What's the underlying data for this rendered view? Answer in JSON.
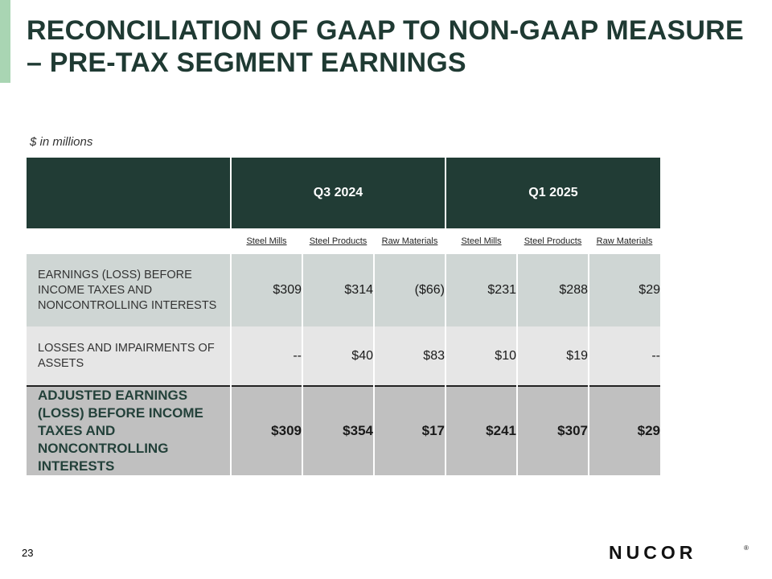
{
  "title": "RECONCILIATION OF GAAP TO NON-GAAP MEASURE – PRE-TAX SEGMENT EARNINGS",
  "subtitle": "$ in millions",
  "periods": [
    "Q3 2024",
    "Q1 2025"
  ],
  "segments": [
    "Steel Mills",
    "Steel Products",
    "Raw Materials",
    "Steel Mills",
    "Steel Products",
    "Raw Materials"
  ],
  "rows": [
    {
      "label": "EARNINGS (LOSS) BEFORE INCOME TAXES AND NONCONTROLLING INTERESTS",
      "values": [
        "$309",
        "$314",
        "($66)",
        "$231",
        "$288",
        "$29"
      ]
    },
    {
      "label": "LOSSES AND IMPAIRMENTS OF ASSETS",
      "values": [
        "--",
        "$40",
        "$83",
        "$10",
        "$19",
        "--"
      ]
    },
    {
      "label": "ADJUSTED EARNINGS (LOSS) BEFORE INCOME TAXES AND NONCONTROLLING INTERESTS",
      "values": [
        "$309",
        "$354",
        "$17",
        "$241",
        "$307",
        "$29"
      ]
    }
  ],
  "page_number": "23",
  "logo": "NUCOR",
  "logo_mark": "®",
  "colors": {
    "header_bg": "#213c35",
    "title": "#1f3a33",
    "accent": "#a9d5b3"
  }
}
